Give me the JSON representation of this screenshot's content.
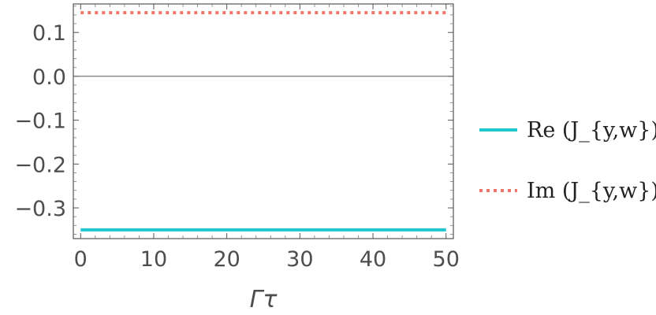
{
  "chart_data": {
    "type": "line",
    "xlabel": "Γτ",
    "ylabel": "",
    "xlim": [
      -1,
      51
    ],
    "ylim": [
      -0.37,
      0.165
    ],
    "x_ticks": [
      0,
      10,
      20,
      30,
      40,
      50
    ],
    "x_tick_labels": [
      "0",
      "10",
      "20",
      "30",
      "40",
      "50"
    ],
    "y_ticks": [
      0.1,
      0.0,
      -0.1,
      -0.2,
      -0.3
    ],
    "y_tick_labels": [
      "0.1",
      "0.0",
      "−0.1",
      "−0.2",
      "−0.3"
    ],
    "reference_line_y": 0,
    "grid": false,
    "legend_position": "right",
    "series": [
      {
        "name": "Re(J_{y,w})",
        "legend_text": "Re (J_{y,w})",
        "style": "solid",
        "color": "#1fc6d0",
        "x": [
          0,
          50
        ],
        "y": [
          -0.35,
          -0.35
        ]
      },
      {
        "name": "Im(J_{y,w})",
        "legend_text": "Im (J_{y,w})",
        "style": "dotted",
        "color": "#f0766a",
        "x": [
          0,
          50
        ],
        "y": [
          0.145,
          0.145
        ]
      }
    ]
  }
}
